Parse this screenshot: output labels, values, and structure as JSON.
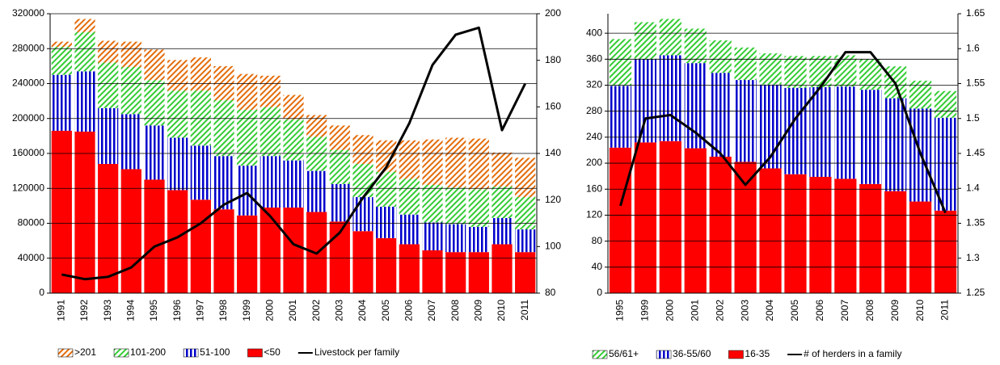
{
  "chart_data": [
    {
      "type": "bar",
      "stacked": true,
      "grid": true,
      "legend": "bottom",
      "categories": [
        "1991",
        "1992",
        "1993",
        "1994",
        "1995",
        "1996",
        "1997",
        "1998",
        "1999",
        "2000",
        "2001",
        "2002",
        "2003",
        "2004",
        "2005",
        "2006",
        "2007",
        "2008",
        "2009",
        "2010",
        "2011"
      ],
      "ylim": [
        0,
        320000
      ],
      "yticks": [
        0,
        40000,
        80000,
        120000,
        160000,
        200000,
        240000,
        280000,
        320000
      ],
      "y2lim": [
        80,
        200
      ],
      "y2ticks": [
        80,
        100,
        120,
        140,
        160,
        180,
        200
      ],
      "series": [
        {
          "name": ">201",
          "color": "#e46c0a",
          "hatch": "diagonal",
          "values": [
            6000,
            15000,
            25000,
            29000,
            35000,
            35000,
            38000,
            39000,
            41000,
            36000,
            28000,
            25000,
            28000,
            33000,
            36000,
            44000,
            52000,
            57000,
            58000,
            39000,
            45000
          ]
        },
        {
          "name": "101-200",
          "color": "#33cc33",
          "hatch": "diagonal",
          "values": [
            32000,
            45000,
            52000,
            54000,
            52000,
            54000,
            63000,
            64000,
            64000,
            56000,
            47000,
            39000,
            39000,
            38000,
            40000,
            41000,
            43000,
            42000,
            43000,
            36000,
            37000
          ]
        },
        {
          "name": "51-100",
          "color": "#0000cc",
          "hatch": "vertical",
          "values": [
            64000,
            69000,
            64000,
            63000,
            62000,
            60000,
            62000,
            61000,
            57000,
            59000,
            54000,
            47000,
            43000,
            39000,
            36000,
            34000,
            32000,
            32000,
            29000,
            30000,
            26000
          ]
        },
        {
          "name": "<50",
          "color": "#ff0000",
          "hatch": "solid",
          "values": [
            186000,
            185000,
            148000,
            142000,
            130000,
            118000,
            107000,
            96000,
            89000,
            98000,
            98000,
            93000,
            82000,
            71000,
            63000,
            56000,
            49000,
            47000,
            47000,
            56000,
            47000
          ]
        },
        {
          "name": "Livestock per family",
          "color": "#000000",
          "axis": "y2",
          "values": [
            88,
            86,
            87,
            91,
            100,
            104,
            110,
            118,
            123,
            113,
            101,
            97,
            106,
            121,
            134,
            153,
            178,
            191,
            194,
            150,
            170
          ]
        }
      ]
    },
    {
      "type": "bar",
      "stacked": true,
      "grid": true,
      "legend": "bottom",
      "categories": [
        "1995",
        "1999",
        "2000",
        "2001",
        "2002",
        "2003",
        "2004",
        "2005",
        "2006",
        "2007",
        "2008",
        "2009",
        "2010",
        "2011"
      ],
      "ylim": [
        0,
        430
      ],
      "yticks": [
        0,
        40,
        80,
        120,
        160,
        200,
        240,
        280,
        320,
        360,
        400
      ],
      "y2lim": [
        1.25,
        1.65
      ],
      "y2ticks": [
        1.25,
        1.3,
        1.35,
        1.4,
        1.45,
        1.5,
        1.55,
        1.6,
        1.65
      ],
      "series": [
        {
          "name": "56/61+",
          "color": "#33cc33",
          "hatch": "diagonal",
          "values": [
            72,
            57,
            56,
            53,
            50,
            50,
            48,
            49,
            48,
            48,
            47,
            49,
            43,
            41
          ]
        },
        {
          "name": "36-55/60",
          "color": "#0000cc",
          "hatch": "vertical",
          "values": [
            95,
            128,
            132,
            131,
            129,
            126,
            129,
            133,
            138,
            142,
            145,
            143,
            143,
            143
          ]
        },
        {
          "name": "16-35",
          "color": "#ff0000",
          "hatch": "solid",
          "values": [
            224,
            232,
            234,
            223,
            210,
            202,
            192,
            183,
            179,
            176,
            168,
            157,
            141,
            127
          ]
        },
        {
          "name": "# of herders  in a family",
          "color": "#000000",
          "axis": "y2",
          "values": [
            1.375,
            1.5,
            1.505,
            1.48,
            1.45,
            1.405,
            1.445,
            1.5,
            1.545,
            1.595,
            1.595,
            1.55,
            1.45,
            1.365
          ]
        }
      ]
    }
  ]
}
